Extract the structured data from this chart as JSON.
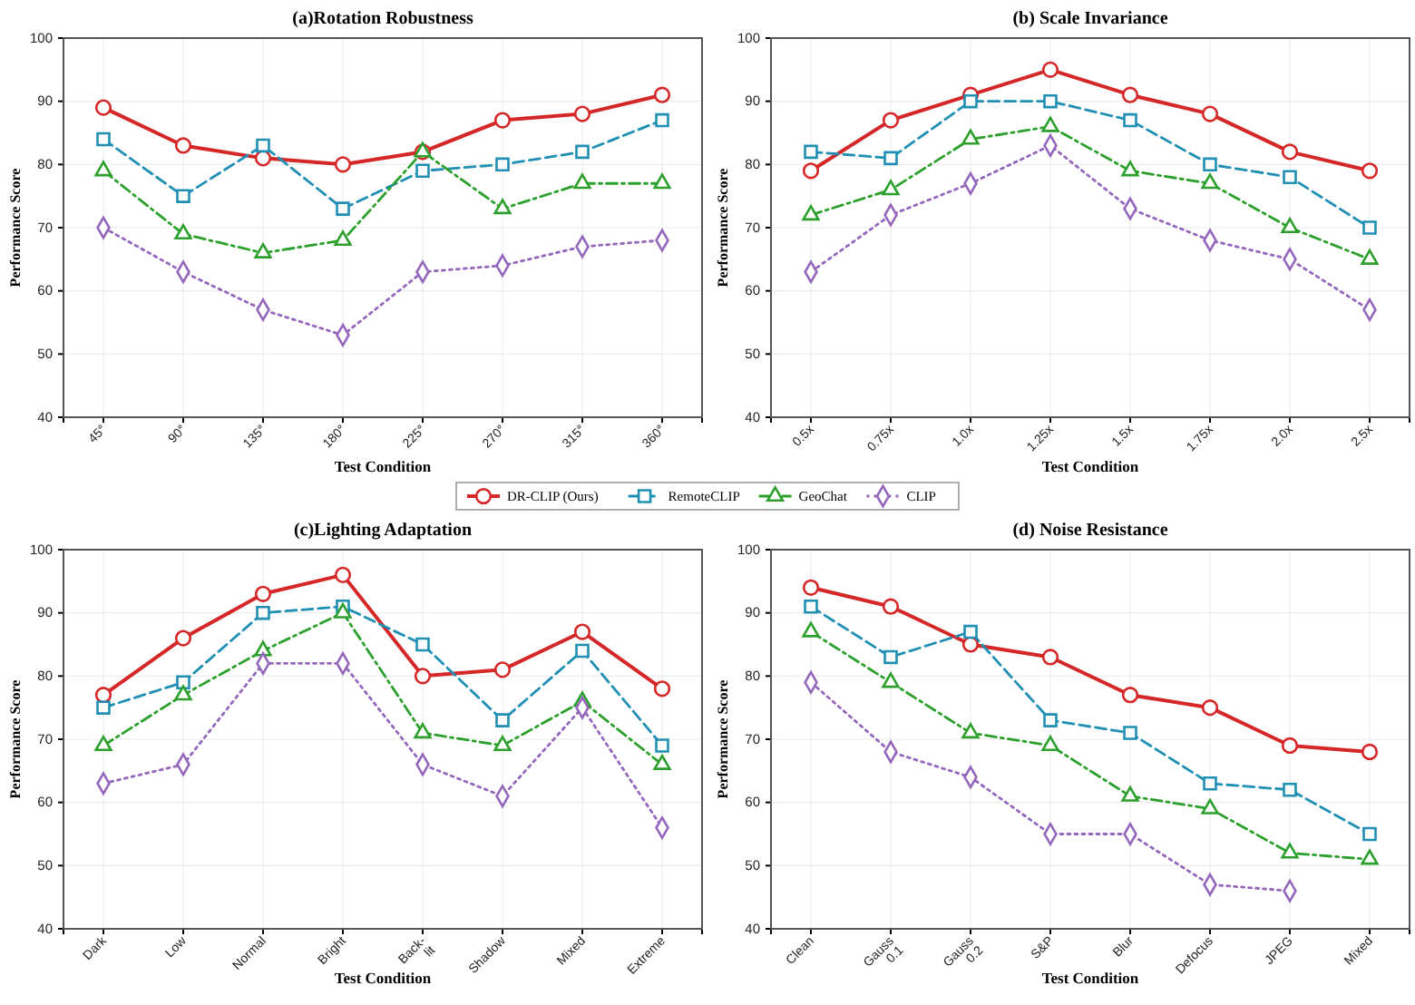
{
  "chart_data": [
    {
      "type": "line",
      "title": "(a)Rotation Robustness",
      "xlabel": "Test Condition",
      "ylabel": "Performance Score",
      "categories": [
        "45°",
        "90°",
        "135°",
        "180°",
        "225°",
        "270°",
        "315°",
        "360°"
      ],
      "ylim": [
        40,
        100
      ],
      "yticks": [
        40,
        50,
        60,
        70,
        80,
        90,
        100
      ],
      "grid": true,
      "legend": "bottom",
      "series": [
        {
          "name": "DR-CLIP (Ours)",
          "color": "#d62728",
          "marker": "circle",
          "line_style": "solid",
          "values": [
            89,
            83,
            81,
            80,
            82,
            87,
            88,
            91
          ]
        },
        {
          "name": "RemoteCLIP",
          "color": "#1f8fb4",
          "marker": "square",
          "line_style": "dashed",
          "values": [
            84,
            75,
            83,
            73,
            79,
            80,
            82,
            87
          ]
        },
        {
          "name": "GeoChat",
          "color": "#2ca02c",
          "marker": "triangle",
          "line_style": "dashdot",
          "values": [
            79,
            69,
            66,
            68,
            82,
            73,
            77,
            77
          ]
        },
        {
          "name": "CLIP",
          "color": "#9467bd",
          "marker": "diamond",
          "line_style": "dotted",
          "values": [
            70,
            63,
            57,
            53,
            63,
            64,
            67,
            68
          ]
        }
      ]
    },
    {
      "type": "line",
      "title": "(b) Scale Invariance",
      "xlabel": "Test Condition",
      "ylabel": "Performance Score",
      "categories": [
        "0.5x",
        "0.75x",
        "1.0x",
        "1.25x",
        "1.5x",
        "1.75x",
        "2.0x",
        "2.5x"
      ],
      "ylim": [
        40,
        100
      ],
      "yticks": [
        40,
        50,
        60,
        70,
        80,
        90,
        100
      ],
      "grid": true,
      "series": [
        {
          "name": "DR-CLIP (Ours)",
          "color": "#d62728",
          "marker": "circle",
          "line_style": "solid",
          "values": [
            79,
            87,
            91,
            95,
            91,
            88,
            82,
            79
          ]
        },
        {
          "name": "RemoteCLIP",
          "color": "#1f8fb4",
          "marker": "square",
          "line_style": "dashed",
          "values": [
            82,
            81,
            90,
            90,
            87,
            80,
            78,
            70
          ]
        },
        {
          "name": "GeoChat",
          "color": "#2ca02c",
          "marker": "triangle",
          "line_style": "dashdot",
          "values": [
            72,
            76,
            84,
            86,
            79,
            77,
            70,
            65
          ]
        },
        {
          "name": "CLIP",
          "color": "#9467bd",
          "marker": "diamond",
          "line_style": "dotted",
          "values": [
            63,
            72,
            77,
            83,
            73,
            68,
            65,
            57
          ]
        }
      ]
    },
    {
      "type": "line",
      "title": "(c)Lighting Adaptation",
      "xlabel": "Test Condition",
      "ylabel": "Performance Score",
      "categories": [
        "Dark",
        "Low",
        "Normal",
        "Bright",
        "Back-\nlit",
        "Shadow",
        "Mixed",
        "Extreme"
      ],
      "ylim": [
        40,
        100
      ],
      "yticks": [
        40,
        50,
        60,
        70,
        80,
        90,
        100
      ],
      "grid": true,
      "series": [
        {
          "name": "DR-CLIP (Ours)",
          "color": "#d62728",
          "marker": "circle",
          "line_style": "solid",
          "values": [
            77,
            86,
            93,
            96,
            80,
            81,
            87,
            78
          ]
        },
        {
          "name": "RemoteCLIP",
          "color": "#1f8fb4",
          "marker": "square",
          "line_style": "dashed",
          "values": [
            75,
            79,
            90,
            91,
            85,
            73,
            84,
            69
          ]
        },
        {
          "name": "GeoChat",
          "color": "#2ca02c",
          "marker": "triangle",
          "line_style": "dashdot",
          "values": [
            69,
            77,
            84,
            90,
            71,
            69,
            76,
            66
          ]
        },
        {
          "name": "CLIP",
          "color": "#9467bd",
          "marker": "diamond",
          "line_style": "dotted",
          "values": [
            63,
            66,
            82,
            82,
            66,
            61,
            75,
            56
          ]
        }
      ]
    },
    {
      "type": "line",
      "title": "(d) Noise Resistance",
      "xlabel": "Test Condition",
      "ylabel": "Performance Score",
      "categories": [
        "Clean",
        "Gauss\n0.1",
        "Gauss\n0.2",
        "S&P",
        "Blur",
        "Defocus",
        "JPEG",
        "Mixed"
      ],
      "ylim": [
        40,
        100
      ],
      "yticks": [
        40,
        50,
        60,
        70,
        80,
        90,
        100
      ],
      "grid": true,
      "series": [
        {
          "name": "DR-CLIP (Ours)",
          "color": "#d62728",
          "marker": "circle",
          "line_style": "solid",
          "values": [
            94,
            91,
            85,
            83,
            77,
            75,
            69,
            68
          ]
        },
        {
          "name": "RemoteCLIP",
          "color": "#1f8fb4",
          "marker": "square",
          "line_style": "dashed",
          "values": [
            91,
            83,
            87,
            73,
            71,
            63,
            62,
            55
          ]
        },
        {
          "name": "GeoChat",
          "color": "#2ca02c",
          "marker": "triangle",
          "line_style": "dashdot",
          "values": [
            87,
            79,
            71,
            69,
            61,
            59,
            52,
            51
          ]
        },
        {
          "name": "CLIP",
          "color": "#9467bd",
          "marker": "diamond",
          "line_style": "dotted",
          "values": [
            79,
            68,
            64,
            55,
            55,
            47,
            46,
            null
          ]
        }
      ]
    }
  ]
}
